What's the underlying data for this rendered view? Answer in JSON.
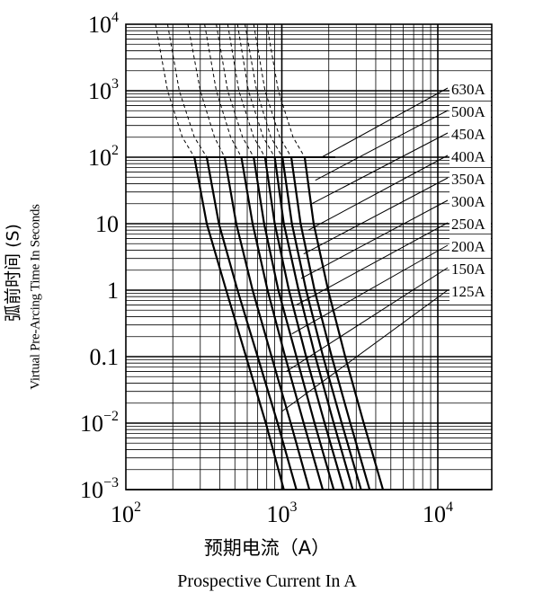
{
  "chart_data": {
    "type": "line",
    "xlabel_cn": "预期电流（A）",
    "xlabel": "Prospective Current In A",
    "ylabel_cn": "弧前时间 (S)",
    "ylabel": "Virtual Pre-Arcing Time In Seconds",
    "x_scale": "log",
    "y_scale": "log",
    "xlim": [
      100,
      14000
    ],
    "ylim": [
      0.001,
      10000
    ],
    "grid": true,
    "x_ticks": [
      {
        "base": "10",
        "exp": "2",
        "value": 100
      },
      {
        "base": "10",
        "exp": "3",
        "value": 1000
      },
      {
        "base": "10",
        "exp": "4",
        "value": 10000
      }
    ],
    "y_ticks": [
      {
        "base": "10",
        "exp": "−3",
        "value": 0.001
      },
      {
        "base": "10",
        "exp": "−2",
        "value": 0.01
      },
      {
        "base": "0.1",
        "exp": "",
        "value": 0.1
      },
      {
        "base": "1",
        "exp": "",
        "value": 1
      },
      {
        "base": "10",
        "exp": "",
        "value": 10
      },
      {
        "base": "10",
        "exp": "2",
        "value": 100
      },
      {
        "base": "10",
        "exp": "3",
        "value": 1000
      },
      {
        "base": "10",
        "exp": "4",
        "value": 10000
      }
    ],
    "legend_placement": "right, inside",
    "series": [
      {
        "name": "125A",
        "points": [
          [
            275,
            100
          ],
          [
            330,
            10
          ],
          [
            440,
            1
          ],
          [
            590,
            0.1
          ],
          [
            790,
            0.01
          ],
          [
            1030,
            0.001
          ]
        ],
        "dashed_from": [
          [
            155,
            10000
          ],
          [
            185,
            1000
          ],
          [
            230,
            200
          ],
          [
            275,
            100
          ]
        ],
        "label_anchor": [
          1000,
          0.015
        ]
      },
      {
        "name": "150A",
        "points": [
          [
            330,
            100
          ],
          [
            395,
            10
          ],
          [
            520,
            1
          ],
          [
            700,
            0.1
          ],
          [
            940,
            0.01
          ],
          [
            1240,
            0.001
          ]
        ],
        "dashed_from": [
          [
            185,
            10000
          ],
          [
            220,
            1000
          ],
          [
            275,
            200
          ],
          [
            330,
            100
          ]
        ],
        "label_anchor": [
          1070,
          0.06
        ]
      },
      {
        "name": "200A",
        "points": [
          [
            430,
            100
          ],
          [
            510,
            10
          ],
          [
            650,
            1
          ],
          [
            860,
            0.1
          ],
          [
            1140,
            0.01
          ],
          [
            1500,
            0.001
          ]
        ],
        "dashed_from": [
          [
            250,
            10000
          ],
          [
            300,
            1000
          ],
          [
            370,
            200
          ],
          [
            430,
            100
          ]
        ],
        "label_anchor": [
          1160,
          0.22
        ]
      },
      {
        "name": "250A",
        "points": [
          [
            550,
            100
          ],
          [
            650,
            10
          ],
          [
            810,
            1
          ],
          [
            1050,
            0.1
          ],
          [
            1380,
            0.01
          ],
          [
            1830,
            0.001
          ]
        ],
        "dashed_from": [
          [
            320,
            10000
          ],
          [
            380,
            1000
          ],
          [
            470,
            200
          ],
          [
            550,
            100
          ]
        ],
        "label_anchor": [
          1240,
          0.6
        ]
      },
      {
        "name": "300A",
        "points": [
          [
            660,
            100
          ],
          [
            770,
            10
          ],
          [
            950,
            1
          ],
          [
            1240,
            0.1
          ],
          [
            1620,
            0.01
          ],
          [
            2150,
            0.001
          ]
        ],
        "dashed_from": [
          [
            380,
            10000
          ],
          [
            450,
            1000
          ],
          [
            560,
            200
          ],
          [
            660,
            100
          ]
        ],
        "label_anchor": [
          1330,
          1.5
        ]
      },
      {
        "name": "350A",
        "points": [
          [
            780,
            100
          ],
          [
            900,
            10
          ],
          [
            1110,
            1
          ],
          [
            1430,
            0.1
          ],
          [
            1880,
            0.01
          ],
          [
            2500,
            0.001
          ]
        ],
        "dashed_from": [
          [
            450,
            10000
          ],
          [
            530,
            1000
          ],
          [
            660,
            200
          ],
          [
            780,
            100
          ]
        ],
        "label_anchor": [
          1380,
          3.5
        ]
      },
      {
        "name": "400A",
        "points": [
          [
            900,
            100
          ],
          [
            1030,
            10
          ],
          [
            1280,
            1
          ],
          [
            1640,
            0.1
          ],
          [
            2150,
            0.01
          ],
          [
            2850,
            0.001
          ]
        ],
        "dashed_from": [
          [
            520,
            10000
          ],
          [
            610,
            1000
          ],
          [
            760,
            200
          ],
          [
            900,
            100
          ]
        ],
        "label_anchor": [
          1480,
          8
        ]
      },
      {
        "name": "450A",
        "points": [
          [
            1010,
            100
          ],
          [
            1160,
            10
          ],
          [
            1430,
            1
          ],
          [
            1840,
            0.1
          ],
          [
            2420,
            0.01
          ],
          [
            3220,
            0.001
          ]
        ],
        "dashed_from": [
          [
            580,
            10000
          ],
          [
            690,
            1000
          ],
          [
            850,
            200
          ],
          [
            1010,
            100
          ]
        ],
        "label_anchor": [
          1560,
          20
        ]
      },
      {
        "name": "500A",
        "points": [
          [
            1150,
            100
          ],
          [
            1320,
            10
          ],
          [
            1620,
            1
          ],
          [
            2090,
            0.1
          ],
          [
            2750,
            0.01
          ],
          [
            3650,
            0.001
          ]
        ],
        "dashed_from": [
          [
            660,
            10000
          ],
          [
            780,
            1000
          ],
          [
            970,
            200
          ],
          [
            1150,
            100
          ]
        ],
        "label_anchor": [
          1640,
          45
        ]
      },
      {
        "name": "630A",
        "points": [
          [
            1400,
            100
          ],
          [
            1600,
            10
          ],
          [
            1980,
            1
          ],
          [
            2550,
            0.1
          ],
          [
            3350,
            0.01
          ],
          [
            4450,
            0.001
          ]
        ],
        "dashed_from": [
          [
            800,
            10000
          ],
          [
            950,
            1000
          ],
          [
            1180,
            200
          ],
          [
            1400,
            100
          ]
        ],
        "label_anchor": [
          1800,
          100
        ]
      }
    ],
    "horizontal_marker": {
      "y": 100,
      "x_from": 200,
      "x_to": 2200
    }
  }
}
